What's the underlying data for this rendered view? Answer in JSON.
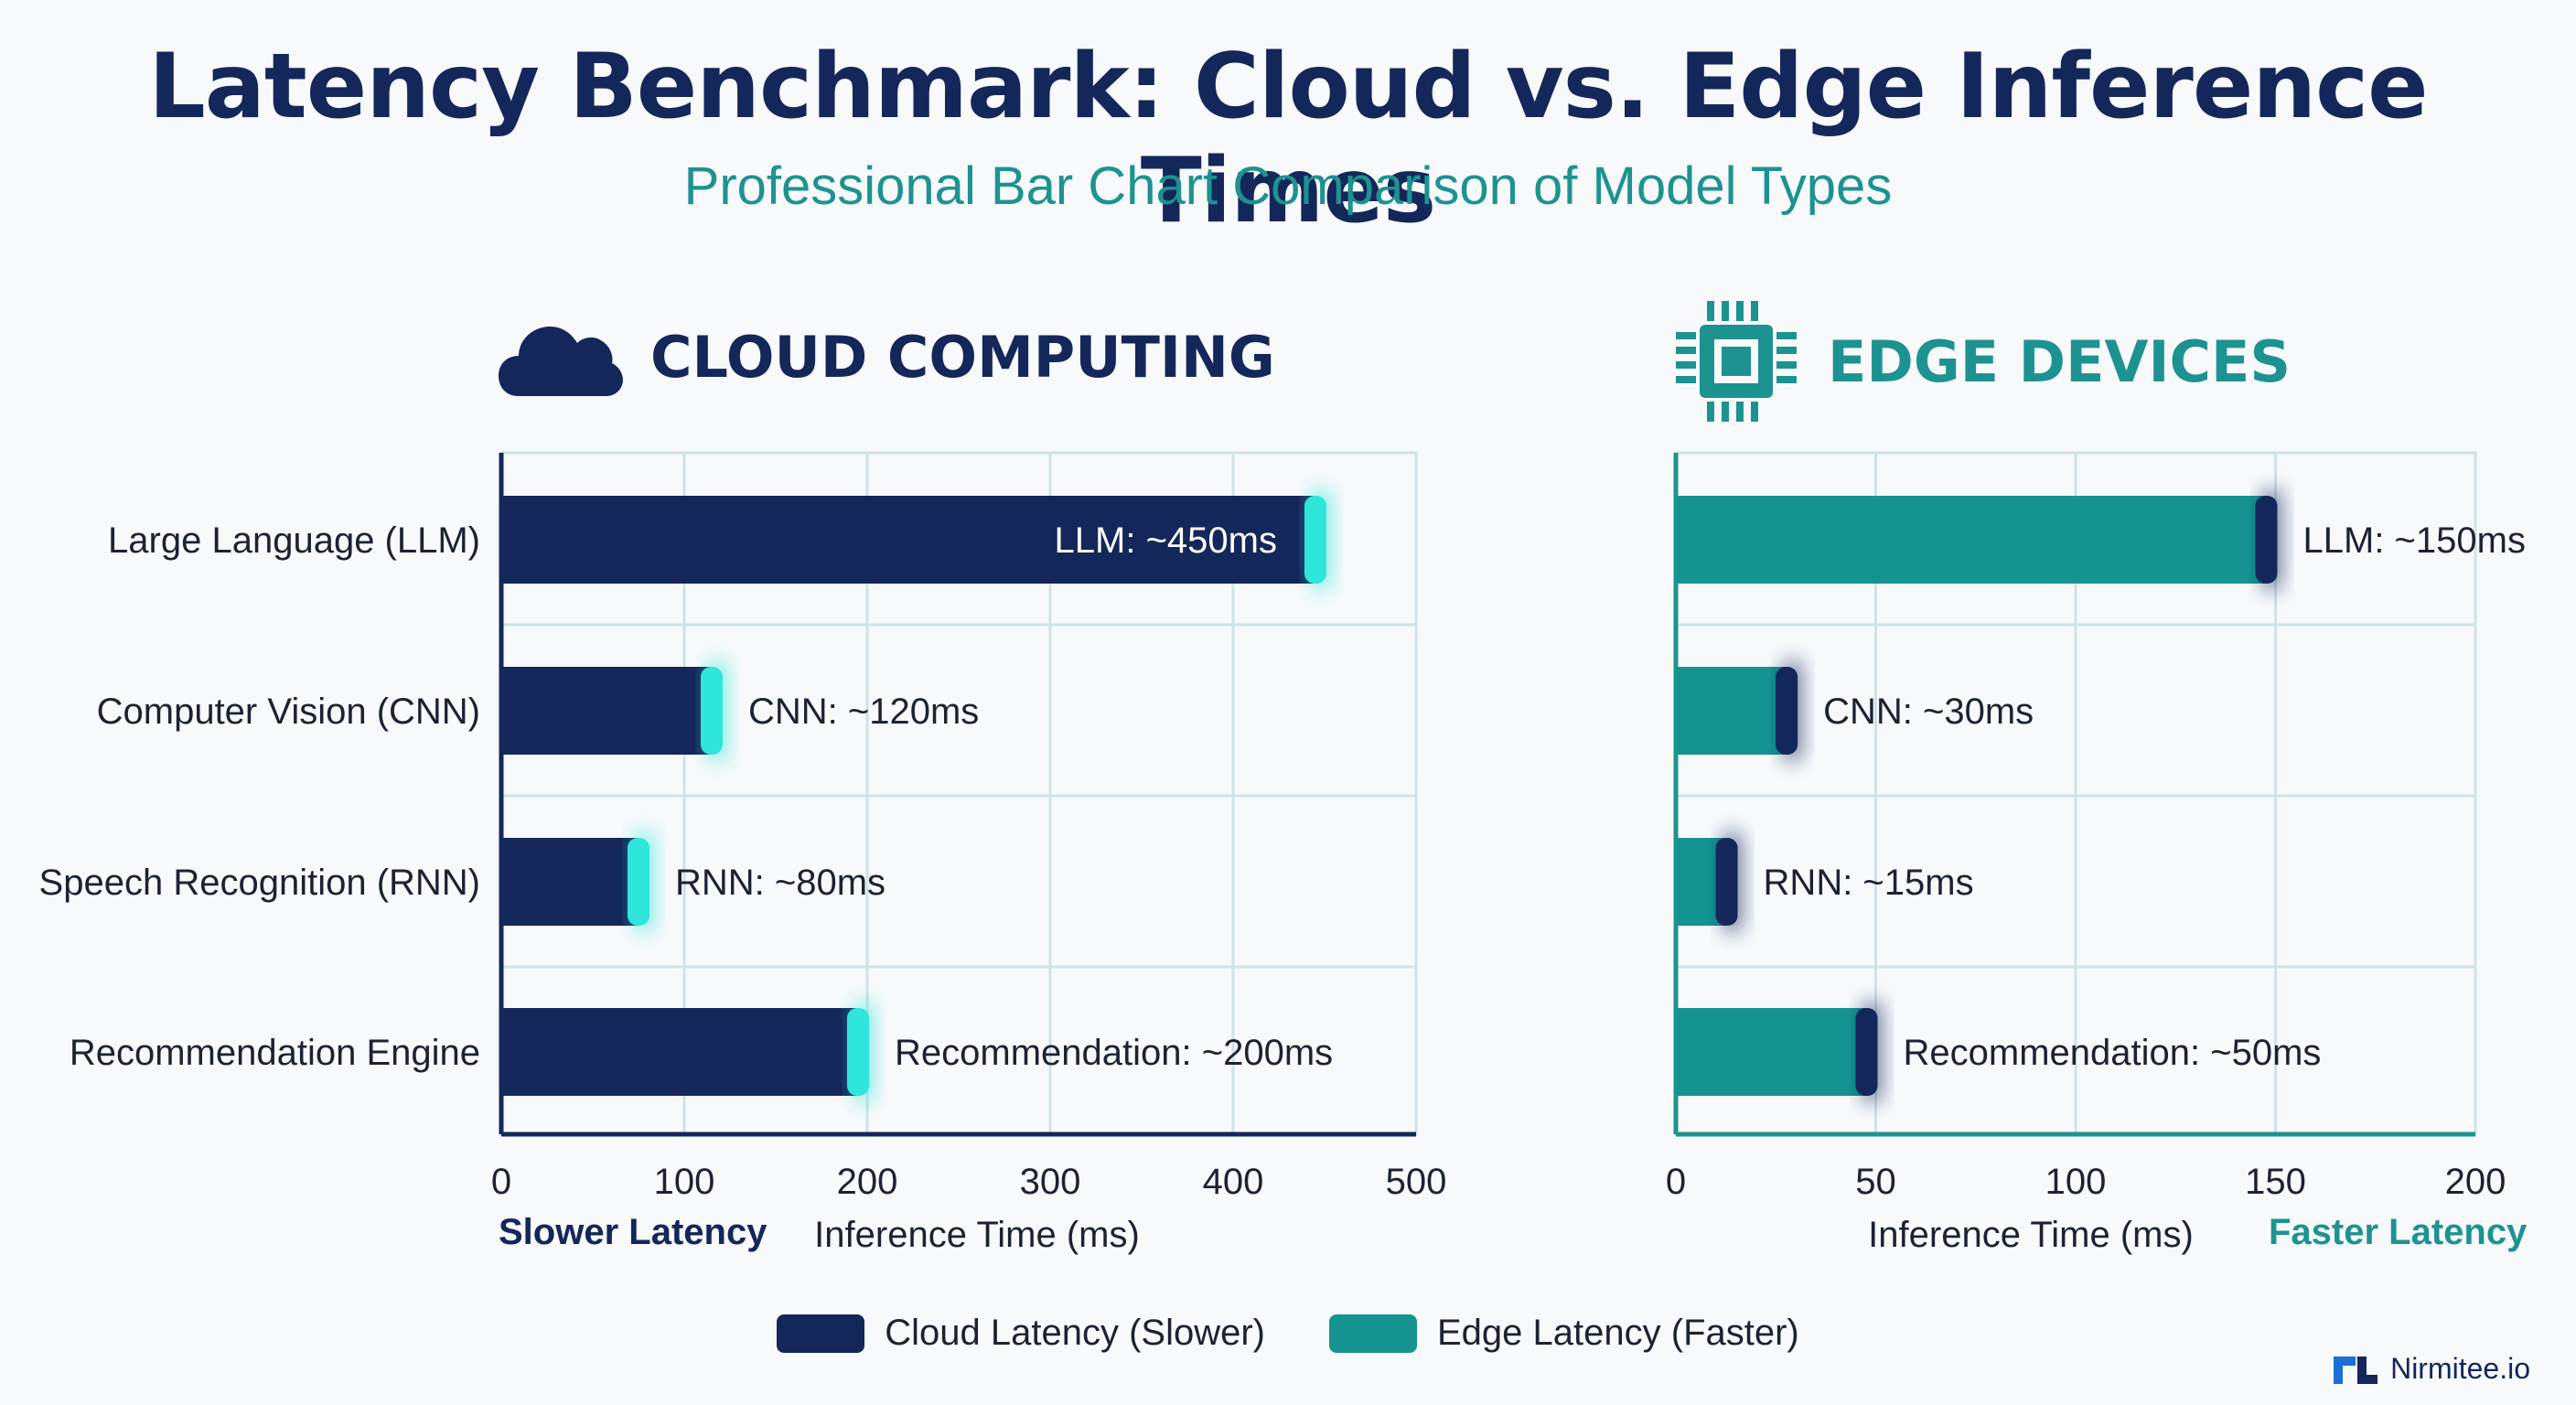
{
  "title": "Latency Benchmark: Cloud vs. Edge Inference Times",
  "subtitle": "Professional Bar Chart Comparison of Model Types",
  "colors": {
    "cloud": "#14275a",
    "edge": "#149391",
    "cloud_cap": "#2ee6da",
    "edge_cap": "#14275a",
    "grid": "#cfe3e8"
  },
  "panels": {
    "cloud": {
      "heading": "CLOUD COMPUTING",
      "icon": "cloud-icon",
      "speed_label": "Slower Latency"
    },
    "edge": {
      "heading": "EDGE DEVICES",
      "icon": "chip-icon",
      "speed_label": "Faster Latency"
    }
  },
  "legend": [
    {
      "label": "Cloud Latency (Slower)",
      "color": "#14275a"
    },
    {
      "label": "Edge Latency (Faster)",
      "color": "#149391"
    }
  ],
  "brand": {
    "name": "Nirmitee.io",
    "icon": "nirmitee-logo-icon"
  },
  "chart_data": [
    {
      "type": "bar",
      "orientation": "horizontal",
      "panel": "cloud",
      "categories": [
        "Large Language (LLM)",
        "Computer Vision (CNN)",
        "Speech Recognition (RNN)",
        "Recommendation Engine"
      ],
      "values": [
        450,
        120,
        80,
        200
      ],
      "data_labels": [
        "LLM: ~450ms",
        "CNN: ~120ms",
        "RNN: ~80ms",
        "Recommendation: ~200ms"
      ],
      "xlabel": "Inference Time (ms)",
      "xlim": [
        0,
        500
      ],
      "xticks": [
        0,
        100,
        200,
        300,
        400,
        500
      ],
      "grid": true
    },
    {
      "type": "bar",
      "orientation": "horizontal",
      "panel": "edge",
      "categories": [
        "Large Language (LLM)",
        "Computer Vision (CNN)",
        "Speech Recognition (RNN)",
        "Recommendation Engine"
      ],
      "values": [
        150,
        30,
        15,
        50
      ],
      "data_labels": [
        "LLM: ~150ms",
        "CNN: ~30ms",
        "RNN: ~15ms",
        "Recommendation: ~50ms"
      ],
      "xlabel": "Inference Time (ms)",
      "xlim": [
        0,
        200
      ],
      "xticks": [
        0,
        50,
        100,
        150,
        200
      ],
      "grid": true
    }
  ]
}
